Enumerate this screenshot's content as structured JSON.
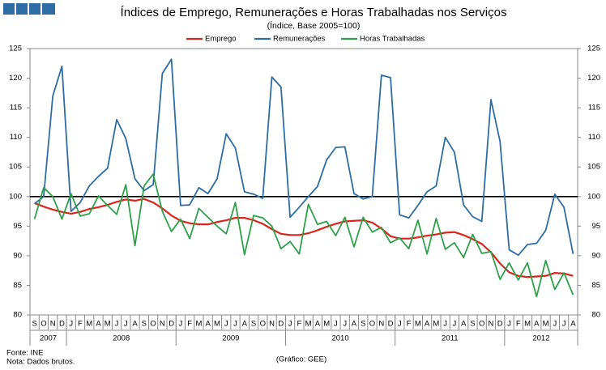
{
  "chart_data": {
    "type": "line",
    "title": "Índices de Emprego, Remunerações e Horas Trabalhadas nos Serviços",
    "subtitle": "(Índice, Base 2005=100)",
    "categories": [
      "S",
      "O",
      "N",
      "D",
      "J",
      "F",
      "M",
      "A",
      "M",
      "J",
      "J",
      "A",
      "S",
      "O",
      "N",
      "D",
      "J",
      "F",
      "M",
      "A",
      "M",
      "J",
      "J",
      "A",
      "S",
      "O",
      "N",
      "D",
      "J",
      "F",
      "M",
      "A",
      "M",
      "J",
      "J",
      "A",
      "S",
      "O",
      "N",
      "D",
      "J",
      "F",
      "M",
      "A",
      "M",
      "J",
      "J",
      "A",
      "S",
      "O",
      "N",
      "D",
      "J",
      "F",
      "M",
      "A",
      "M",
      "J",
      "J",
      "A"
    ],
    "years": [
      "2007",
      "2008",
      "2009",
      "2010",
      "2011",
      "2012"
    ],
    "series": [
      {
        "name": "Emprego",
        "color": "#d9261c",
        "values": [
          98.9,
          98.3,
          97.8,
          97.4,
          97.1,
          97.4,
          97.9,
          98.2,
          98.6,
          99.1,
          99.5,
          99.3,
          99.6,
          99.0,
          98.0,
          96.8,
          95.9,
          95.5,
          95.3,
          95.3,
          95.7,
          96.0,
          96.4,
          96.4,
          96.0,
          95.4,
          94.5,
          93.7,
          93.5,
          93.5,
          93.8,
          94.3,
          94.9,
          95.4,
          95.8,
          95.9,
          96.0,
          95.6,
          94.6,
          93.3,
          92.9,
          92.9,
          93.1,
          93.4,
          93.6,
          93.9,
          94.0,
          93.5,
          92.8,
          92.0,
          90.6,
          88.7,
          87.2,
          86.6,
          86.4,
          86.5,
          86.6,
          87.1,
          87.0,
          86.6
        ]
      },
      {
        "name": "Remunerações",
        "color": "#2e6ca4",
        "values": [
          98.8,
          100.0,
          117.0,
          122.0,
          97.5,
          99.0,
          101.8,
          103.4,
          104.8,
          113.0,
          109.8,
          103.0,
          101.0,
          102.0,
          120.8,
          123.2,
          98.5,
          98.6,
          101.5,
          100.5,
          103.0,
          110.6,
          108.2,
          100.8,
          100.4,
          99.7,
          120.2,
          118.5,
          96.5,
          98.2,
          100.0,
          101.7,
          106.2,
          108.3,
          108.4,
          100.5,
          99.6,
          100.0,
          120.5,
          120.1,
          96.9,
          96.4,
          98.5,
          100.8,
          101.8,
          110.0,
          107.5,
          98.6,
          96.6,
          95.8,
          116.4,
          109.3,
          91.0,
          90.1,
          91.9,
          92.1,
          94.3,
          100.4,
          98.2,
          90.3
        ]
      },
      {
        "name": "Horas Trabalhadas",
        "color": "#2ea04a",
        "values": [
          96.2,
          101.5,
          100.0,
          96.2,
          100.5,
          96.7,
          97.1,
          100.1,
          98.5,
          97.0,
          102.0,
          91.7,
          101.8,
          103.8,
          97.5,
          94.1,
          96.2,
          92.9,
          98.0,
          96.5,
          95.0,
          93.7,
          99.0,
          90.2,
          96.8,
          96.4,
          95.0,
          91.2,
          92.4,
          90.3,
          98.7,
          95.3,
          95.8,
          93.4,
          96.5,
          91.5,
          96.5,
          94.0,
          94.8,
          92.2,
          93.0,
          91.2,
          96.0,
          90.3,
          96.3,
          91.1,
          92.2,
          89.7,
          93.6,
          90.4,
          90.7,
          86.0,
          88.8,
          85.9,
          88.8,
          83.1,
          89.2,
          84.3,
          87.1,
          83.4
        ]
      }
    ],
    "reference_line": 100,
    "ylim": [
      80,
      125
    ],
    "yticks": [
      80,
      85,
      90,
      95,
      100,
      105,
      110,
      115,
      120,
      125
    ],
    "y2lim": [
      80,
      125
    ],
    "y2ticks": [
      80,
      85,
      90,
      95,
      100,
      105,
      110,
      115,
      120,
      125
    ],
    "legend": "top",
    "source": "Fonte: INE",
    "note": "Nota: Dados brutos.",
    "credit": "(Gráfico: GEE)"
  }
}
